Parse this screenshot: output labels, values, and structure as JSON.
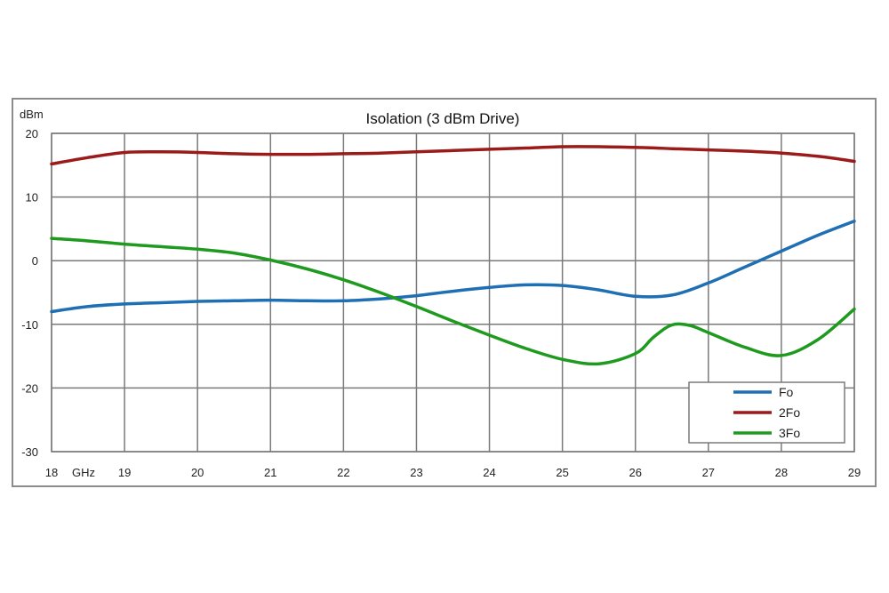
{
  "chart_data": {
    "type": "line",
    "title": "Isolation (3 dBm Drive)",
    "ylabel": "dBm",
    "x_unit_label": "GHz",
    "xlim": [
      18,
      29
    ],
    "ylim": [
      -30,
      20
    ],
    "x_ticks": [
      18,
      19,
      20,
      21,
      22,
      23,
      24,
      25,
      26,
      27,
      28,
      29
    ],
    "y_ticks": [
      -30,
      -20,
      -10,
      0,
      10,
      20
    ],
    "grid": true,
    "legend_position": "bottom-right",
    "series": [
      {
        "name": "Fo",
        "color": "#1f6fb5",
        "points": [
          [
            18,
            -8
          ],
          [
            18.5,
            -7.2
          ],
          [
            19,
            -6.8
          ],
          [
            19.5,
            -6.6
          ],
          [
            20,
            -6.4
          ],
          [
            20.5,
            -6.3
          ],
          [
            21,
            -6.2
          ],
          [
            21.5,
            -6.3
          ],
          [
            22,
            -6.3
          ],
          [
            22.5,
            -6.0
          ],
          [
            23,
            -5.5
          ],
          [
            23.5,
            -4.8
          ],
          [
            24,
            -4.2
          ],
          [
            24.5,
            -3.8
          ],
          [
            25,
            -3.9
          ],
          [
            25.5,
            -4.6
          ],
          [
            26,
            -5.6
          ],
          [
            26.5,
            -5.4
          ],
          [
            27,
            -3.5
          ],
          [
            27.5,
            -1.0
          ],
          [
            28,
            1.5
          ],
          [
            28.5,
            4.0
          ],
          [
            29,
            6.2
          ]
        ]
      },
      {
        "name": "2Fo",
        "color": "#9b1b1b",
        "points": [
          [
            18,
            15.2
          ],
          [
            18.5,
            16.2
          ],
          [
            19,
            17.0
          ],
          [
            19.5,
            17.1
          ],
          [
            20,
            17.0
          ],
          [
            20.5,
            16.8
          ],
          [
            21,
            16.7
          ],
          [
            21.5,
            16.7
          ],
          [
            22,
            16.8
          ],
          [
            22.5,
            16.9
          ],
          [
            23,
            17.1
          ],
          [
            23.5,
            17.3
          ],
          [
            24,
            17.5
          ],
          [
            24.5,
            17.7
          ],
          [
            25,
            17.9
          ],
          [
            25.5,
            17.9
          ],
          [
            26,
            17.8
          ],
          [
            26.5,
            17.6
          ],
          [
            27,
            17.4
          ],
          [
            27.5,
            17.2
          ],
          [
            28,
            16.9
          ],
          [
            28.5,
            16.4
          ],
          [
            29,
            15.6
          ]
        ]
      },
      {
        "name": "3Fo",
        "color": "#1e9a1e",
        "points": [
          [
            18,
            3.5
          ],
          [
            18.5,
            3.1
          ],
          [
            19,
            2.6
          ],
          [
            19.5,
            2.2
          ],
          [
            20,
            1.8
          ],
          [
            20.5,
            1.2
          ],
          [
            21,
            0.1
          ],
          [
            21.5,
            -1.3
          ],
          [
            22,
            -3.0
          ],
          [
            22.5,
            -5.0
          ],
          [
            23,
            -7.2
          ],
          [
            23.5,
            -9.5
          ],
          [
            24,
            -11.7
          ],
          [
            24.5,
            -13.8
          ],
          [
            25,
            -15.5
          ],
          [
            25.5,
            -16.2
          ],
          [
            26,
            -14.6
          ],
          [
            26.25,
            -12.0
          ],
          [
            26.5,
            -10.1
          ],
          [
            26.75,
            -10.2
          ],
          [
            27,
            -11.3
          ],
          [
            27.5,
            -13.6
          ],
          [
            28,
            -14.9
          ],
          [
            28.5,
            -12.4
          ],
          [
            29,
            -7.6
          ]
        ]
      }
    ]
  }
}
